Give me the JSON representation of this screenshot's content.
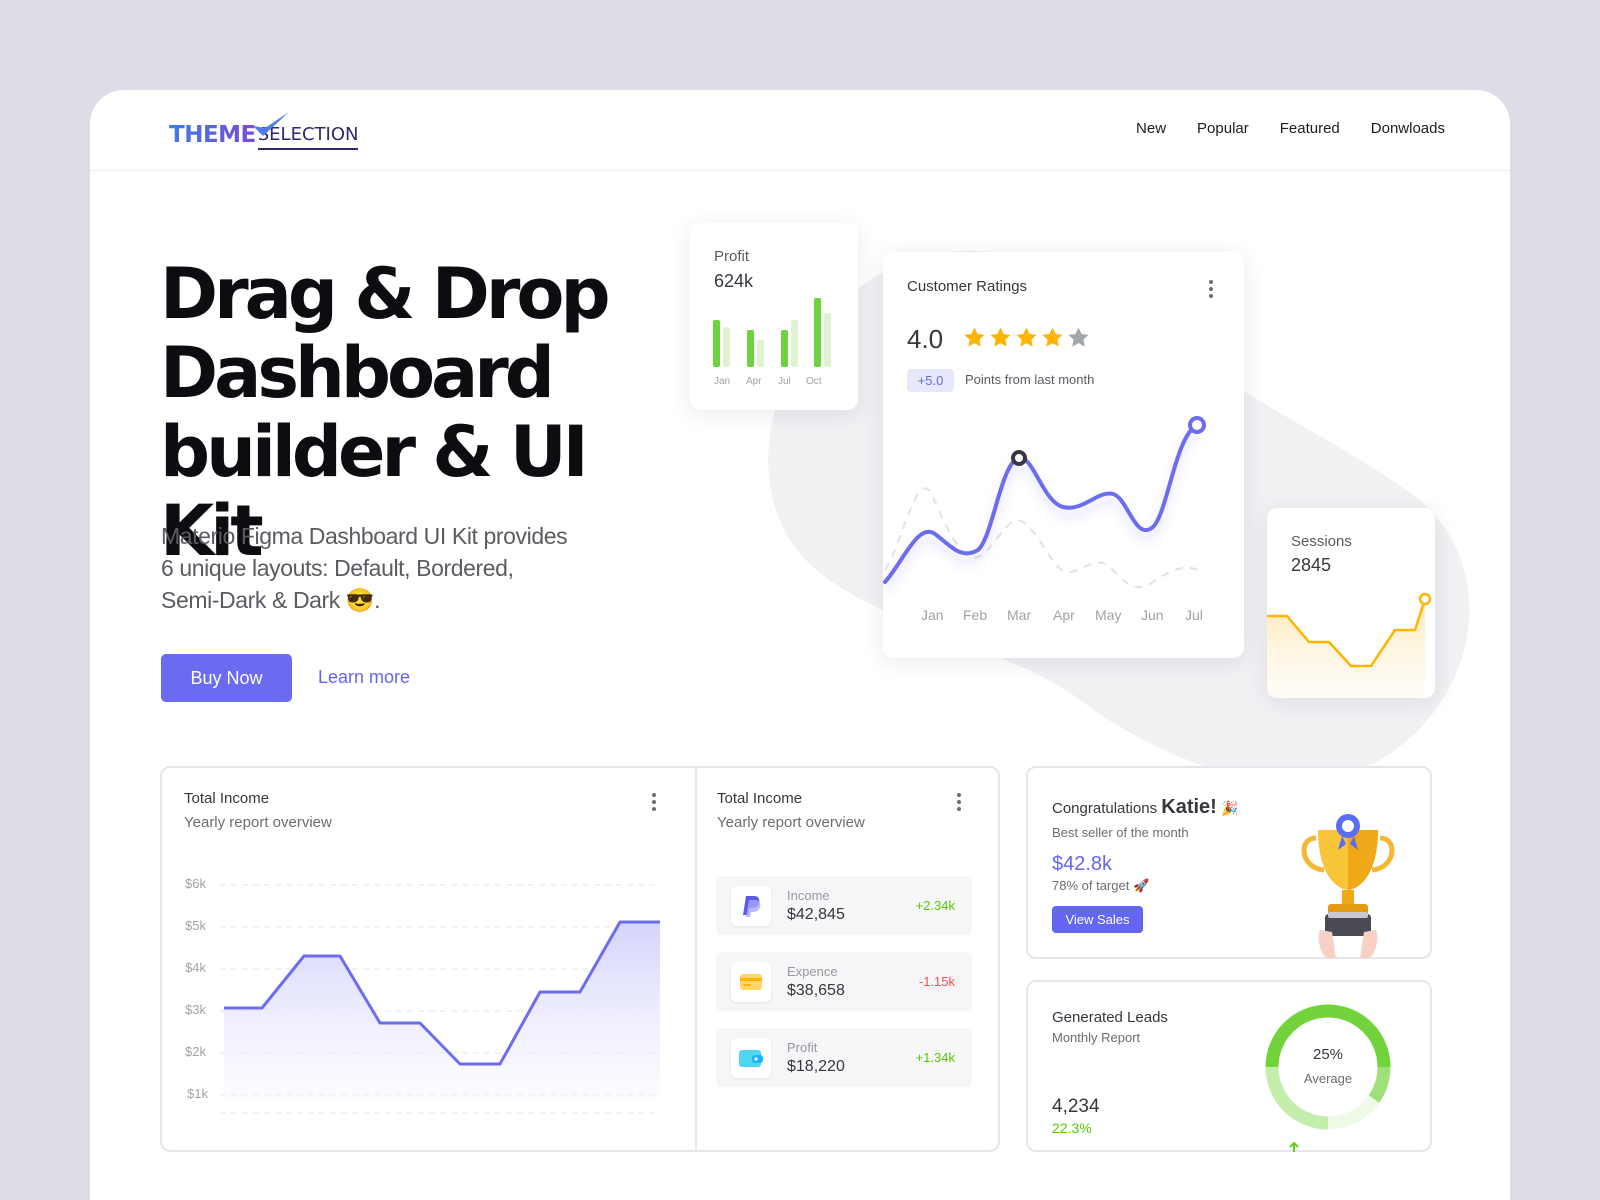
{
  "brand": {
    "logo_word1": "THEME",
    "logo_word2": "SELECTION"
  },
  "nav": {
    "items": [
      "New",
      "Popular",
      "Featured",
      "Donwloads"
    ]
  },
  "hero": {
    "title_line1": "Drag & Drop",
    "title_line2": "Dashboard",
    "title_line3": "builder & UI Kit",
    "sub_line1": "Materio Figma Dashboard UI Kit provides",
    "sub_line2": "6 unique layouts: Default, Bordered,",
    "sub_line3": "Semi-Dark & Dark",
    "sub_emoji": "😎",
    "sub_end": ".",
    "buy_label": "Buy Now",
    "learn_label": "Learn more"
  },
  "profit": {
    "label": "Profit",
    "value": "624k",
    "months": [
      "Jan",
      "Apr",
      "Jul",
      "Oct"
    ],
    "accent": "#6cd33f",
    "light": "#dff3d3"
  },
  "ratings": {
    "label": "Customer Ratings",
    "score": "4.0",
    "stars_filled": 4,
    "stars_total": 5,
    "badge": "+5.0",
    "badge_text": "Points from last month",
    "months": [
      "Jan",
      "Feb",
      "Mar",
      "Apr",
      "May",
      "Jun",
      "Jul"
    ],
    "accent": "#6c6cf0",
    "star_color": "#ffb400"
  },
  "sessions": {
    "label": "Sessions",
    "value": "2845",
    "accent": "#ffb400"
  },
  "total_income": {
    "title": "Total Income",
    "subtitle": "Yearly report overview",
    "y_ticks": [
      "$6k",
      "$5k",
      "$4k",
      "$3k",
      "$2k",
      "$1k"
    ]
  },
  "income_report": {
    "title": "Total Income",
    "subtitle": "Yearly report overview",
    "rows": [
      {
        "label": "Income",
        "value": "$42,845",
        "change": "+2.34k",
        "color": "#56ca00"
      },
      {
        "label": "Expence",
        "value": "$38,658",
        "change": "-1.15k",
        "color": "#ff4c51"
      },
      {
        "label": "Profit",
        "value": "$18,220",
        "change": "+1.34k",
        "color": "#56ca00"
      }
    ]
  },
  "congrats": {
    "title": "Congratulations",
    "name": "Katie!",
    "emoji": "🎉",
    "subtitle": "Best seller of the month",
    "amount": "$42.8k",
    "target": "78% of target",
    "target_emoji": "🚀",
    "button": "View Sales"
  },
  "leads": {
    "title": "Generated Leads",
    "subtitle": "Monthly Report",
    "value": "4,234",
    "growth": "22.3%",
    "donut_percent": "25%",
    "donut_label": "Average"
  }
}
